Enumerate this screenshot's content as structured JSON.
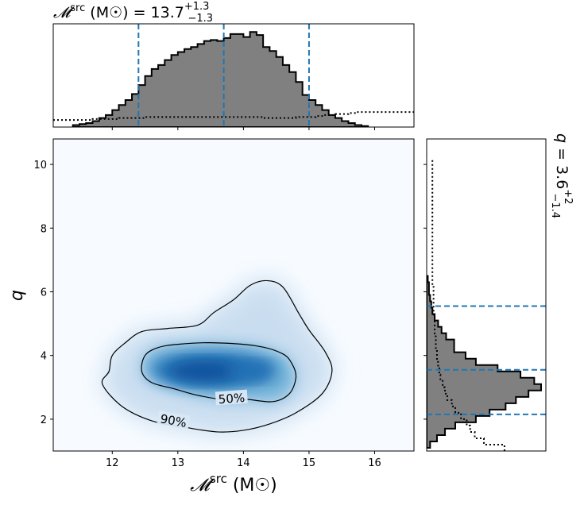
{
  "chart_data": {
    "type": "heatmap",
    "title_top": "𝓜ˢʳᶜ (M☉) = 13.7+1.3−1.3",
    "title_top_parts": {
      "symbol": "𝓜",
      "sup": "src",
      "unit": " (M☉) = 13.7",
      "upper": "+1.3",
      "lower": "−1.3"
    },
    "title_right_parts": {
      "symbol": "q",
      "text": " = 3.6",
      "upper": "+2",
      "lower": "−1.4"
    },
    "xlabel_parts": {
      "symbol": "𝓜",
      "sup": "src",
      "unit": " (M☉)"
    },
    "ylabel": "q",
    "xlim": [
      11.1,
      16.6
    ],
    "ylim": [
      1.0,
      10.8
    ],
    "x_ticks": [
      12,
      13,
      14,
      15,
      16
    ],
    "y_ticks": [
      2,
      4,
      6,
      8,
      10
    ],
    "x_ticks_labels": [
      "12",
      "13",
      "14",
      "15",
      "16"
    ],
    "y_ticks_labels": [
      "2",
      "4",
      "6",
      "8",
      "10"
    ],
    "contour_labels": [
      "50%",
      "90%"
    ],
    "heatmap_peak": {
      "x": 13.4,
      "y": 3.5
    },
    "contour_50": [
      [
        12.5,
        4.0
      ],
      [
        12.7,
        4.25
      ],
      [
        13.0,
        4.35
      ],
      [
        13.5,
        4.4
      ],
      [
        14.2,
        4.3
      ],
      [
        14.6,
        4.05
      ],
      [
        14.75,
        3.7
      ],
      [
        14.8,
        3.3
      ],
      [
        14.7,
        2.8
      ],
      [
        14.45,
        2.55
      ],
      [
        14.05,
        2.62
      ],
      [
        13.75,
        2.6
      ],
      [
        13.3,
        2.75
      ],
      [
        12.95,
        2.95
      ],
      [
        12.6,
        3.15
      ],
      [
        12.45,
        3.5
      ],
      [
        12.5,
        4.0
      ]
    ],
    "contour_90": [
      [
        12.2,
        4.4
      ],
      [
        12.45,
        4.75
      ],
      [
        12.85,
        4.85
      ],
      [
        13.3,
        4.95
      ],
      [
        13.55,
        5.35
      ],
      [
        13.85,
        5.75
      ],
      [
        14.1,
        6.2
      ],
      [
        14.35,
        6.35
      ],
      [
        14.6,
        6.15
      ],
      [
        14.85,
        5.3
      ],
      [
        15.0,
        4.8
      ],
      [
        15.25,
        4.1
      ],
      [
        15.35,
        3.5
      ],
      [
        15.2,
        2.8
      ],
      [
        14.8,
        2.2
      ],
      [
        14.4,
        1.85
      ],
      [
        14.0,
        1.65
      ],
      [
        13.6,
        1.6
      ],
      [
        13.1,
        1.75
      ],
      [
        12.6,
        1.95
      ],
      [
        12.15,
        2.4
      ],
      [
        11.85,
        3.1
      ],
      [
        11.95,
        3.5
      ],
      [
        12.0,
        4.0
      ],
      [
        12.2,
        4.4
      ]
    ],
    "top_histogram": {
      "x_edges_start": 11.4,
      "bin_width": 0.1,
      "values": [
        0.02,
        0.03,
        0.04,
        0.06,
        0.09,
        0.12,
        0.17,
        0.22,
        0.27,
        0.33,
        0.42,
        0.51,
        0.58,
        0.62,
        0.67,
        0.72,
        0.75,
        0.78,
        0.8,
        0.83,
        0.86,
        0.87,
        0.86,
        0.89,
        0.93,
        0.93,
        0.9,
        0.95,
        0.92,
        0.8,
        0.76,
        0.7,
        0.62,
        0.55,
        0.45,
        0.32,
        0.27,
        0.22,
        0.17,
        0.12,
        0.09,
        0.06,
        0.04,
        0.02,
        0.01
      ],
      "prior_values": [
        0.07,
        0.07,
        0.07,
        0.08,
        0.08,
        0.08,
        0.08,
        0.09,
        0.09,
        0.09,
        0.09,
        0.1,
        0.1,
        0.1,
        0.1,
        0.1,
        0.1,
        0.1,
        0.1,
        0.1,
        0.1,
        0.1,
        0.1,
        0.1,
        0.1,
        0.1,
        0.1,
        0.1,
        0.1,
        0.09,
        0.09,
        0.09,
        0.09,
        0.09,
        0.1,
        0.1,
        0.1,
        0.11,
        0.12,
        0.12,
        0.13,
        0.13,
        0.14,
        0.15,
        0.15
      ],
      "quantile_lines": [
        12.4,
        13.7,
        15.0
      ]
    },
    "right_histogram": {
      "y_edges_start": 1.1,
      "bin_width": 0.2,
      "values": [
        0.03,
        0.09,
        0.16,
        0.25,
        0.43,
        0.55,
        0.69,
        0.78,
        0.89,
        1.0,
        0.94,
        0.82,
        0.62,
        0.43,
        0.34,
        0.24,
        0.24,
        0.17,
        0.13,
        0.1,
        0.07,
        0.05,
        0.04,
        0.03,
        0.02,
        0.02,
        0.01
      ],
      "prior_values": [
        0.68,
        0.5,
        0.42,
        0.38,
        0.35,
        0.3,
        0.25,
        0.22,
        0.18,
        0.16,
        0.14,
        0.12,
        0.11,
        0.1,
        0.09,
        0.09,
        0.08,
        0.08,
        0.07,
        0.07,
        0.07,
        0.06,
        0.06,
        0.06,
        0.06,
        0.06,
        0.05,
        0.05,
        0.05,
        0.05,
        0.05,
        0.05,
        0.05,
        0.05,
        0.05,
        0.05,
        0.05,
        0.05,
        0.05,
        0.05,
        0.05,
        0.05,
        0.05,
        0.05,
        0.05,
        0.05
      ],
      "quantile_lines": [
        2.15,
        3.55,
        5.55
      ]
    },
    "colors": {
      "heatmap_cmap": [
        "#f7fbff",
        "#deebf7",
        "#c6dbef",
        "#9ecae1",
        "#6baed6",
        "#4292c6",
        "#2171b5",
        "#08519c"
      ],
      "hist_fill": "#808080",
      "quantile_line": "#1f77b4",
      "contour": "#000000"
    }
  }
}
